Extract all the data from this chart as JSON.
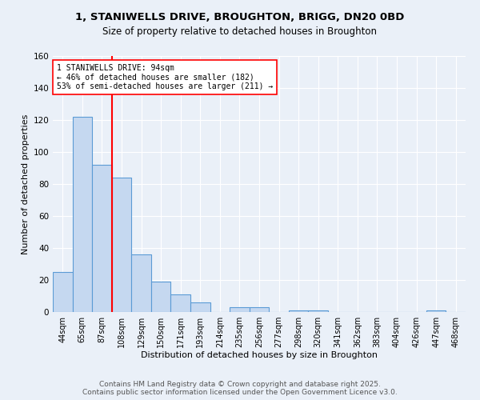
{
  "title_line1": "1, STANIWELLS DRIVE, BROUGHTON, BRIGG, DN20 0BD",
  "title_line2": "Size of property relative to detached houses in Broughton",
  "xlabel": "Distribution of detached houses by size in Broughton",
  "ylabel": "Number of detached properties",
  "categories": [
    "44sqm",
    "65sqm",
    "87sqm",
    "108sqm",
    "129sqm",
    "150sqm",
    "171sqm",
    "193sqm",
    "214sqm",
    "235sqm",
    "256sqm",
    "277sqm",
    "298sqm",
    "320sqm",
    "341sqm",
    "362sqm",
    "383sqm",
    "404sqm",
    "426sqm",
    "447sqm",
    "468sqm"
  ],
  "values": [
    25,
    122,
    92,
    84,
    36,
    19,
    11,
    6,
    0,
    3,
    3,
    0,
    1,
    1,
    0,
    0,
    0,
    0,
    0,
    1,
    0
  ],
  "bar_color": "#c5d8f0",
  "bar_edge_color": "#5b9bd5",
  "red_line_index": 2.5,
  "annotation_text": "1 STANIWELLS DRIVE: 94sqm\n← 46% of detached houses are smaller (182)\n53% of semi-detached houses are larger (211) →",
  "annotation_box_color": "white",
  "annotation_box_edge_color": "red",
  "annotation_fontsize": 7,
  "ylim": [
    0,
    160
  ],
  "yticks": [
    0,
    20,
    40,
    60,
    80,
    100,
    120,
    140,
    160
  ],
  "background_color": "#eaf0f8",
  "grid_color": "white",
  "footer_line1": "Contains HM Land Registry data © Crown copyright and database right 2025.",
  "footer_line2": "Contains public sector information licensed under the Open Government Licence v3.0.",
  "footer_fontsize": 6.5,
  "title1_fontsize": 9.5,
  "title2_fontsize": 8.5,
  "xlabel_fontsize": 8,
  "ylabel_fontsize": 8
}
